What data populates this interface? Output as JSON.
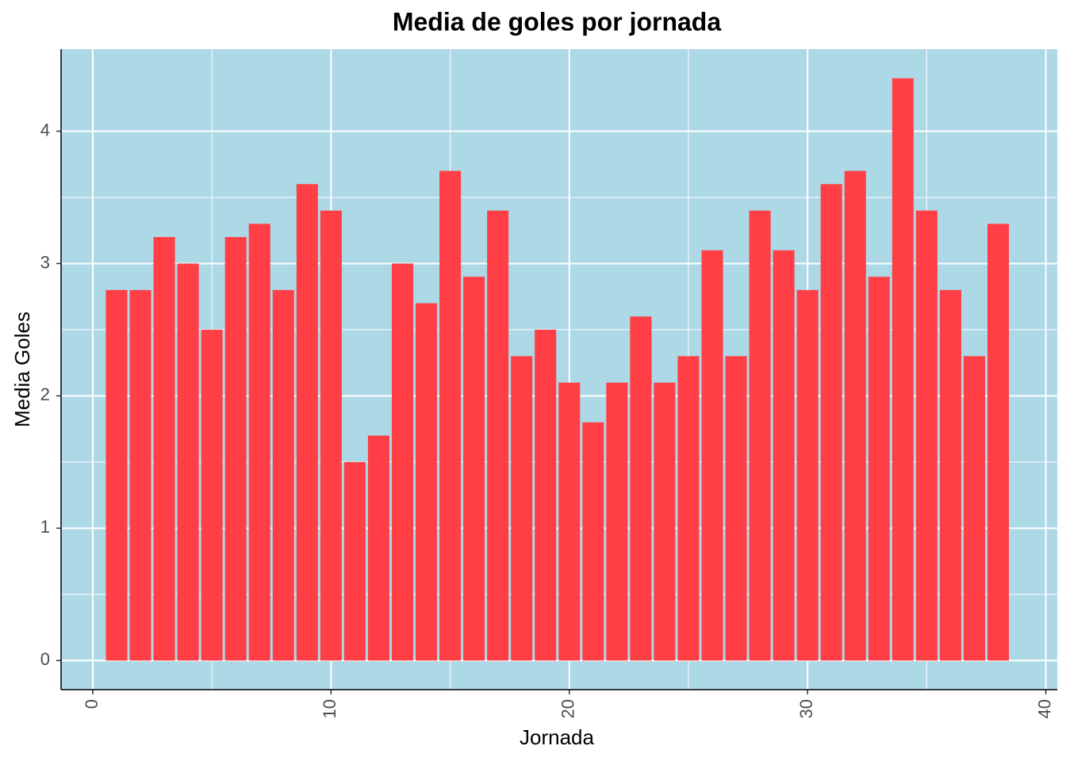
{
  "chart_data": {
    "type": "bar",
    "title": "Media de goles por jornada",
    "x_label": "Jornada",
    "y_label": "Media Goles",
    "x": [
      1,
      2,
      3,
      4,
      5,
      6,
      7,
      8,
      9,
      10,
      11,
      12,
      13,
      14,
      15,
      16,
      17,
      18,
      19,
      20,
      21,
      22,
      23,
      24,
      25,
      26,
      27,
      28,
      29,
      30,
      31,
      32,
      33,
      34,
      35,
      36,
      37,
      38
    ],
    "values": [
      2.8,
      2.8,
      3.2,
      3.0,
      2.5,
      3.2,
      3.3,
      2.8,
      3.6,
      3.4,
      1.5,
      1.7,
      3.0,
      2.7,
      3.7,
      2.9,
      3.4,
      2.3,
      2.5,
      2.1,
      1.8,
      2.1,
      2.6,
      2.1,
      2.3,
      3.1,
      2.3,
      3.4,
      3.1,
      2.8,
      3.6,
      3.7,
      2.9,
      4.4,
      3.4,
      2.8,
      2.3,
      3.3
    ],
    "color": "#ff3f45",
    "background": "#add8e6",
    "xlim": [
      -1.33,
      40.48
    ],
    "xticks": [
      0,
      10,
      20,
      30,
      40
    ],
    "ylim": [
      -0.22,
      4.62
    ],
    "yticks": [
      0,
      1,
      2,
      3,
      4
    ],
    "grid": true
  }
}
